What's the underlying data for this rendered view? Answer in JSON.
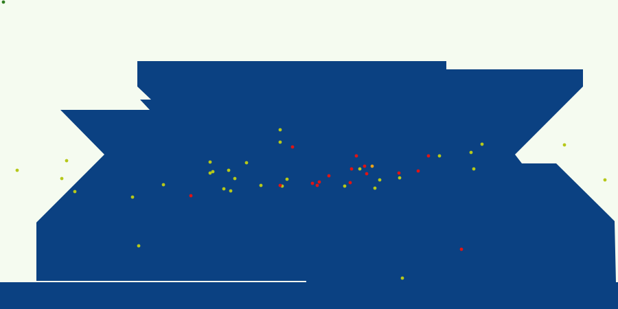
{
  "colors": {
    "background": "#f5fbf0",
    "terrain": "#0b4182",
    "player": "#2e7d1f",
    "yellow_unit": "#b6c81a",
    "red_unit": "#e01414",
    "orange_unit": "#e8a21b"
  },
  "icons": {
    "player": "green-dot",
    "yellow_unit": "yellow-dot",
    "red_unit": "red-dot",
    "orange_unit": "orange-dot"
  },
  "units": {
    "count_total": 51,
    "count_yellow": 34,
    "count_red": 16,
    "count_orange": 1
  }
}
